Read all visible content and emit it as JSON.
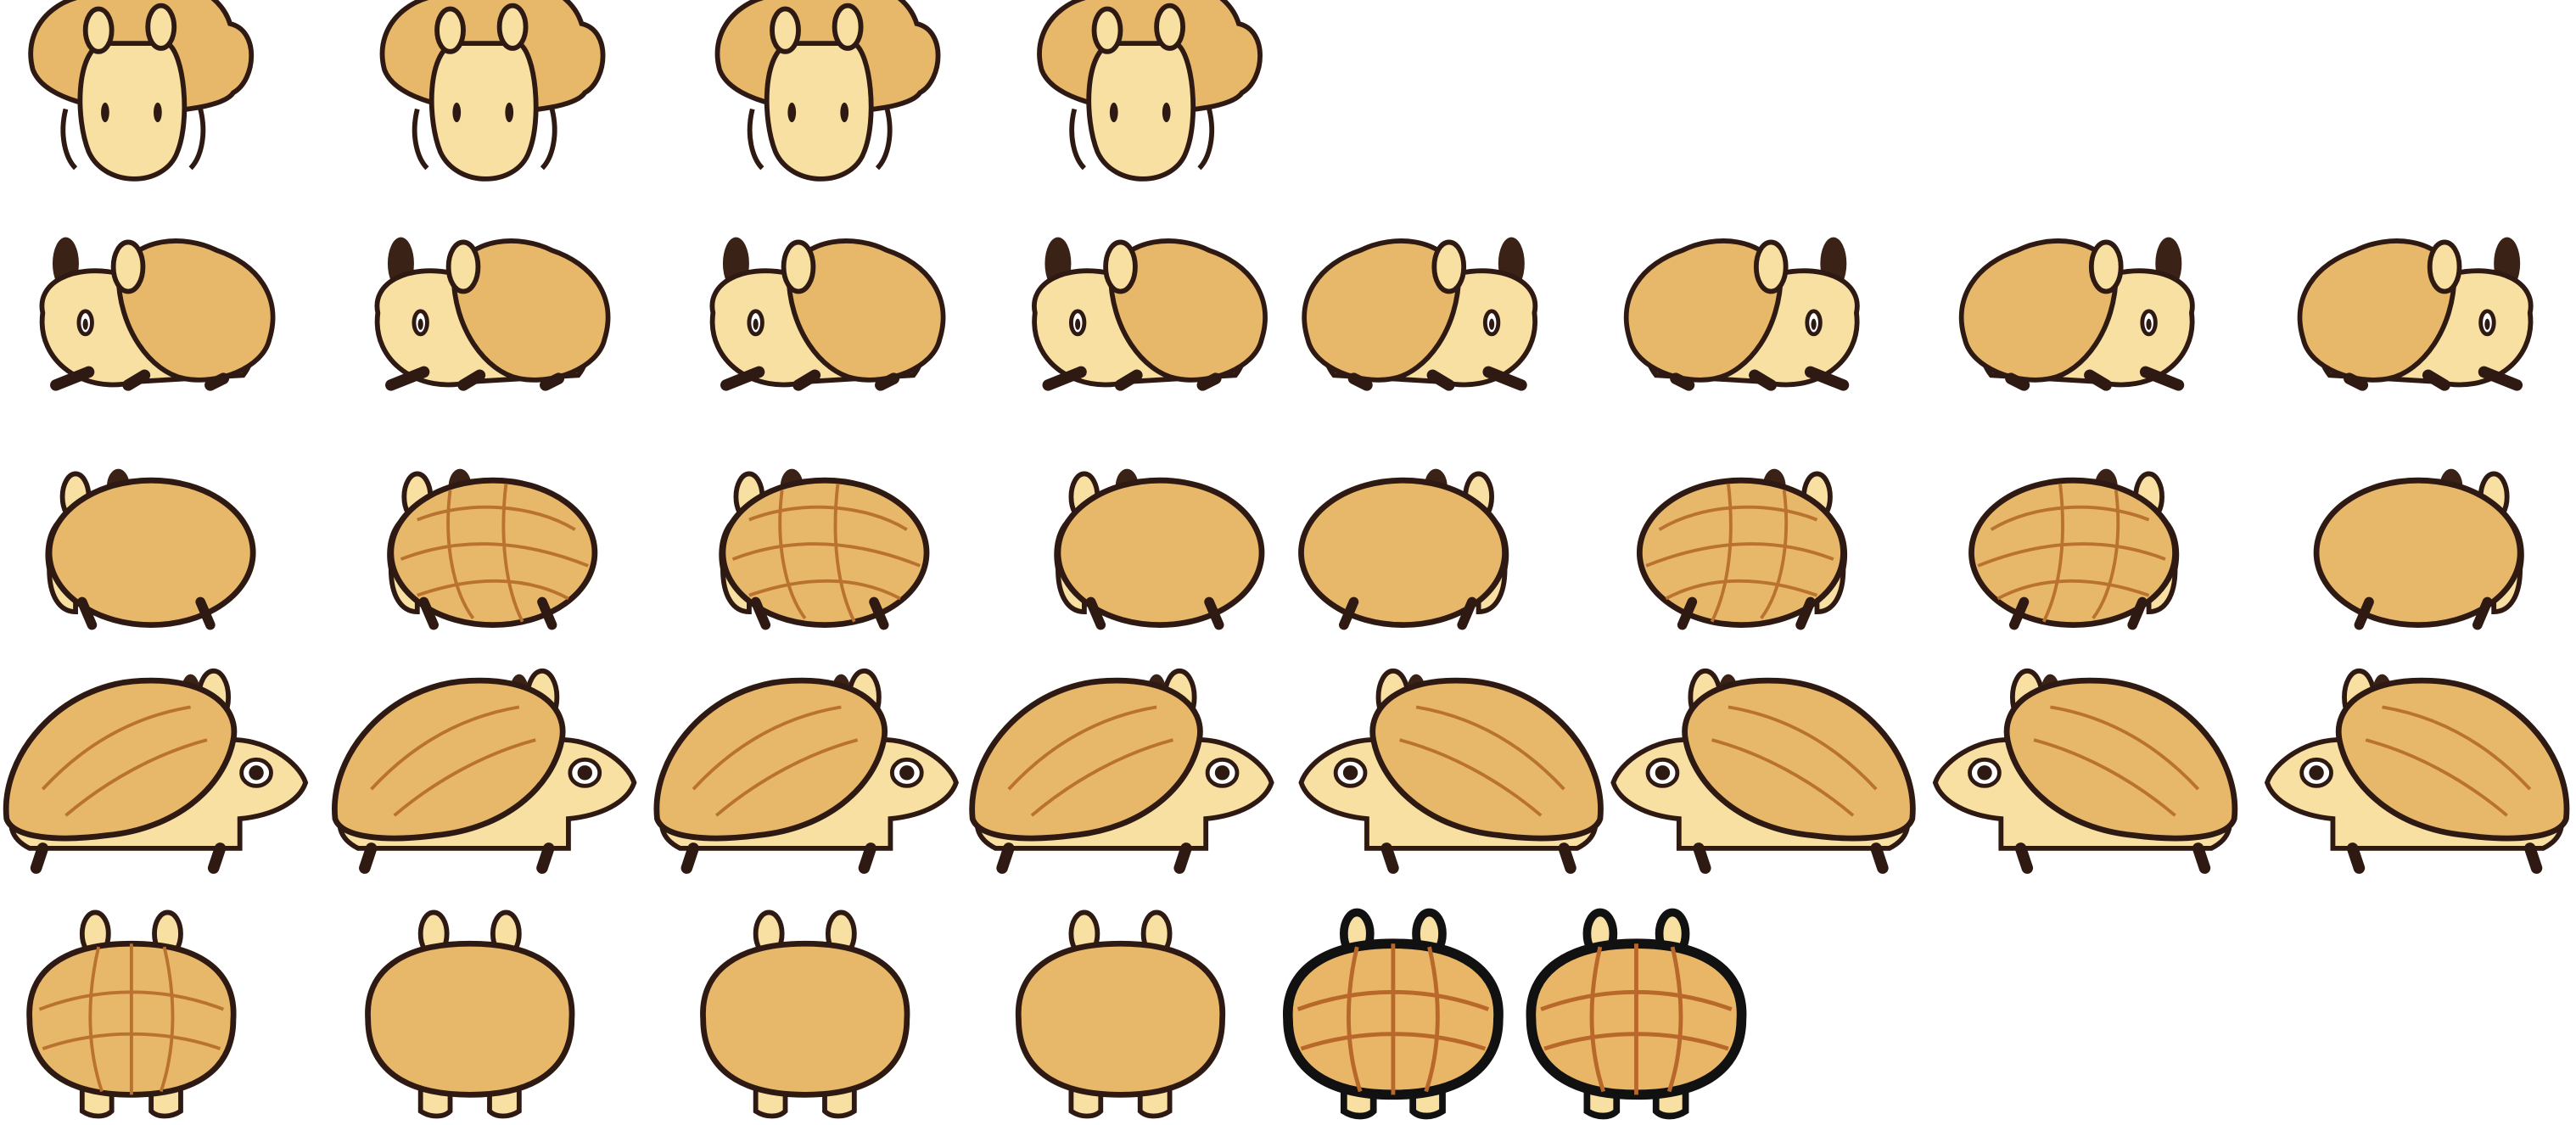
{
  "sheet": {
    "character": "melon-pan-creature",
    "colors": {
      "body": "#F8DFA2",
      "shell": "#E7B86A",
      "shell_dark": "#D49A4E",
      "outline": "#2E1A12",
      "ear_dark": "#3A2216",
      "crust_line": "#B9722F",
      "background": "#FFFFFF"
    },
    "rows": [
      {
        "name": "front-walk",
        "frames": 4
      },
      {
        "name": "side-profile-walk",
        "frames": 8
      },
      {
        "name": "rolled-shell-turn",
        "frames": 8
      },
      {
        "name": "side-walk",
        "frames": 8
      },
      {
        "name": "back-view",
        "frames": 6
      }
    ]
  }
}
